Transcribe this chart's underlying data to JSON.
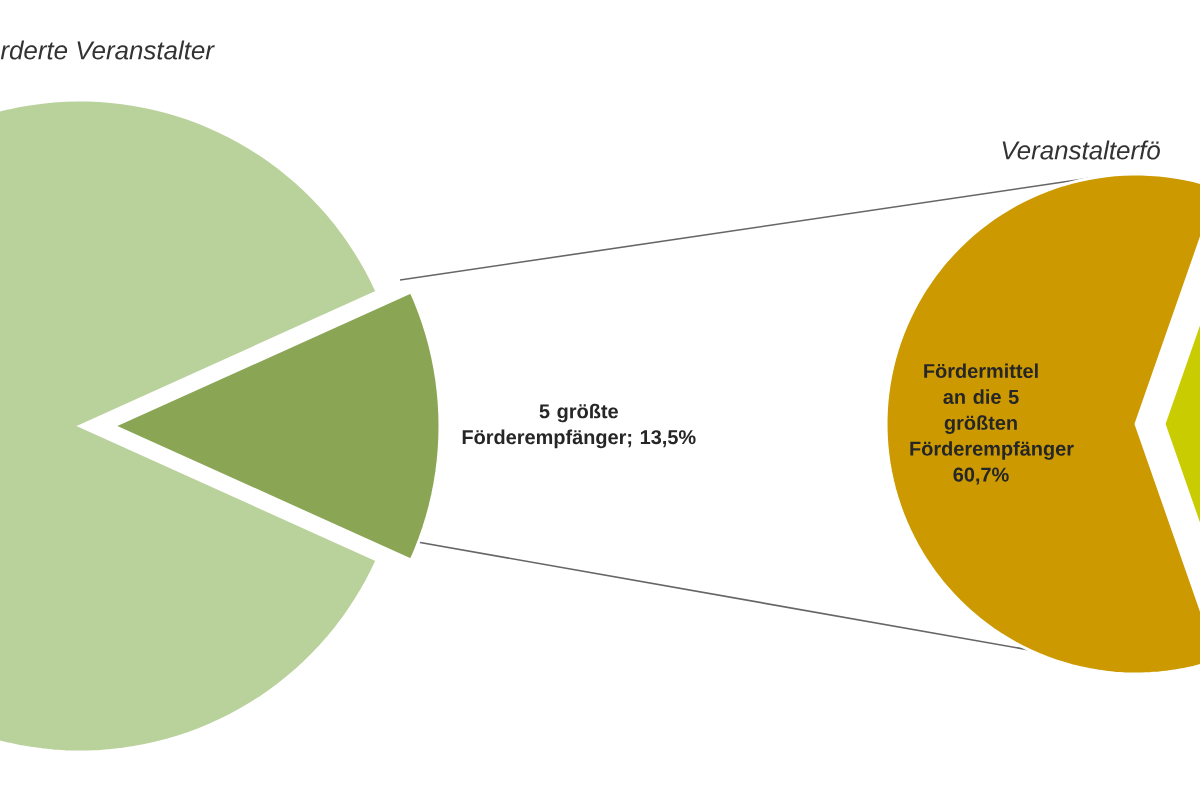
{
  "chart_data": [
    {
      "type": "pie",
      "title": "rderte Veranstalter",
      "categories": [
        null,
        "5 größte Förderempfänger; 13,5%"
      ],
      "values": [
        86.5,
        13.5
      ],
      "colors": [
        "#b9d19b",
        "#8aa655"
      ]
    },
    {
      "type": "pie",
      "title": "Veranstalterfö",
      "categories": [
        "Fördermittel an die 5 größten Förderempfänger",
        null
      ],
      "values": [
        60.7,
        39.3
      ],
      "value_labels": [
        "60,7%",
        null
      ],
      "colors": [
        "#cc9a00",
        "#c9cc00"
      ]
    }
  ]
}
